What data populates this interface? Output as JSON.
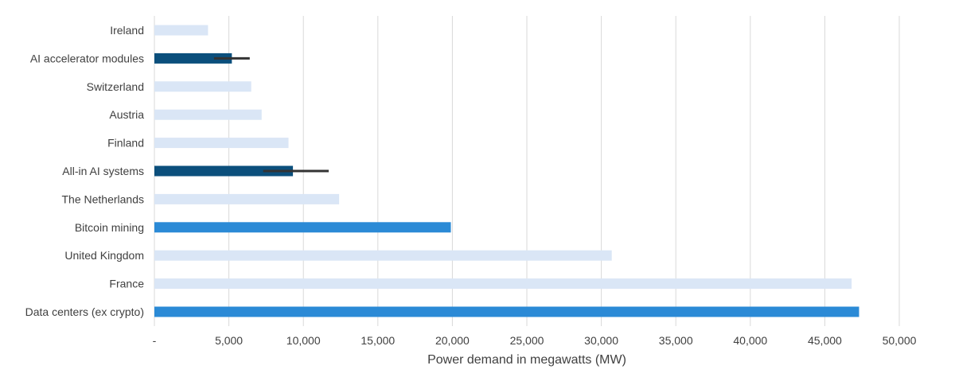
{
  "chart_data": {
    "type": "bar",
    "orientation": "horizontal",
    "categories": [
      "Ireland",
      "AI accelerator modules",
      "Switzerland",
      "Austria",
      "Finland",
      "All-in AI systems",
      "The Netherlands",
      "Bitcoin mining",
      "United Kingdom",
      "France",
      "Data centers (ex crypto)"
    ],
    "values": [
      3600,
      5200,
      6500,
      7200,
      9000,
      9300,
      12400,
      19900,
      30700,
      46800,
      47300
    ],
    "bar_kind": [
      "country",
      "ai",
      "country",
      "country",
      "country",
      "ai",
      "country",
      "compute",
      "country",
      "country",
      "compute"
    ],
    "error_bars": [
      null,
      {
        "low": 4000,
        "high": 6400
      },
      null,
      null,
      null,
      {
        "low": 7300,
        "high": 11700
      },
      null,
      null,
      null,
      null,
      null
    ],
    "colors": {
      "country": "#dae6f6",
      "ai": "#0b4f7c",
      "compute": "#2b8ad6",
      "error_bar": "#333333",
      "grid": "#d9d9d9",
      "text": "#404040"
    },
    "xlabel": "Power demand in megawatts (MW)",
    "ylabel": "",
    "title": "",
    "xlim": [
      0,
      50000
    ],
    "x_ticks": [
      0,
      5000,
      10000,
      15000,
      20000,
      25000,
      30000,
      35000,
      40000,
      45000,
      50000
    ],
    "x_tick_labels": [
      "-",
      "5,000",
      "10,000",
      "15,000",
      "20,000",
      "25,000",
      "30,000",
      "35,000",
      "40,000",
      "45,000",
      "50,000"
    ],
    "grid": "vertical",
    "legend": "none"
  }
}
